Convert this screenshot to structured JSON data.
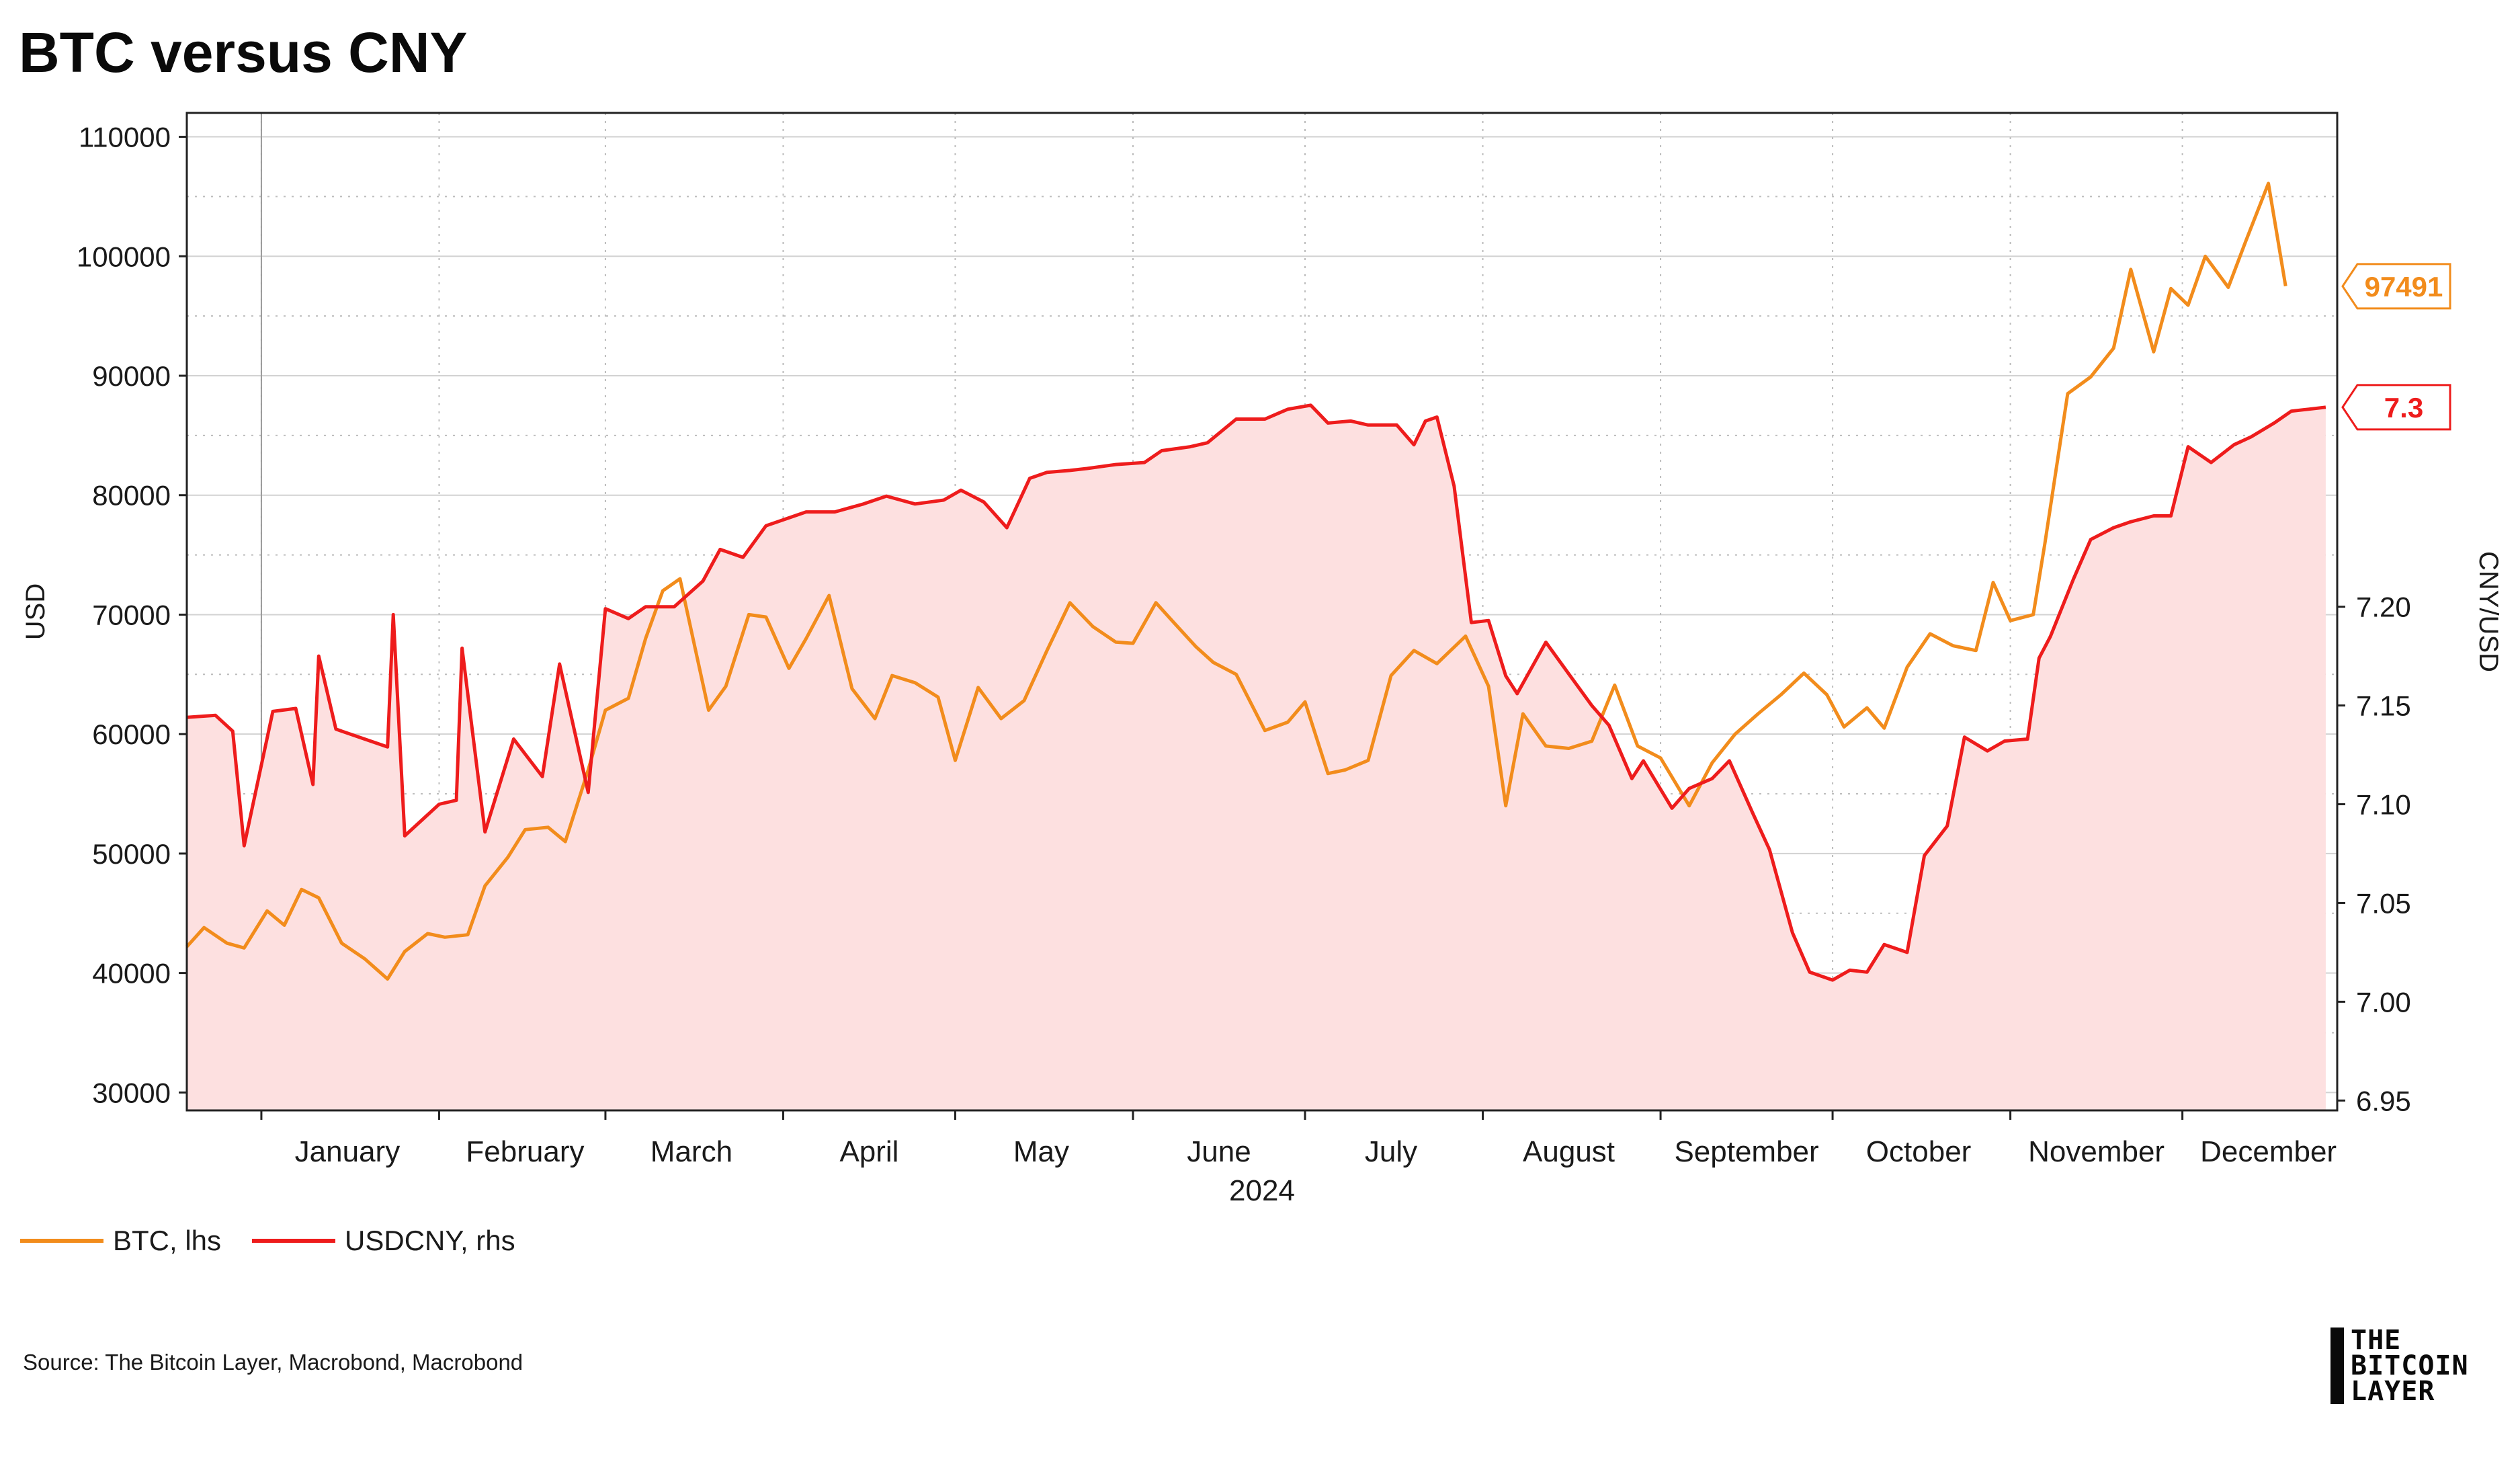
{
  "title": "BTC versus CNY",
  "source": "Source: The Bitcoin Layer, Macrobond, Macrobond",
  "logo_lines": [
    "THE",
    "BITCOIN",
    "LAYER"
  ],
  "legend": [
    {
      "label": "BTC, lhs",
      "color": "#f28c1c"
    },
    {
      "label": "USDCNY, rhs",
      "color": "#ee1c1c"
    }
  ],
  "chart_data": {
    "type": "line",
    "title": "BTC versus CNY",
    "xlabel": "2024",
    "ylabel_left": "USD",
    "ylabel_right": "CNY/USD",
    "x_range": [
      "2023-12-19",
      "2024-12-28"
    ],
    "ylim_left": [
      28500,
      112000
    ],
    "ylim_right": [
      6.945,
      7.45
    ],
    "yticks_left": [
      30000,
      40000,
      50000,
      60000,
      70000,
      80000,
      90000,
      100000,
      110000
    ],
    "yticks_right": [
      "6.95",
      "7.00",
      "7.05",
      "7.10",
      "7.15",
      "7.20"
    ],
    "months": [
      "January",
      "February",
      "March",
      "April",
      "May",
      "June",
      "July",
      "August",
      "September",
      "October",
      "November",
      "December"
    ],
    "grid": true,
    "legend_position": "bottom-left",
    "last_value_labels": {
      "BTC": "97491",
      "USDCNY": "7.3"
    },
    "series": [
      {
        "name": "BTC, lhs",
        "axis": "left",
        "color": "#f28c1c",
        "points": [
          [
            "2023-12-19",
            42200
          ],
          [
            "2023-12-22",
            43800
          ],
          [
            "2023-12-26",
            42500
          ],
          [
            "2023-12-29",
            42100
          ],
          [
            "2024-01-02",
            45200
          ],
          [
            "2024-01-05",
            44000
          ],
          [
            "2024-01-08",
            47000
          ],
          [
            "2024-01-11",
            46300
          ],
          [
            "2024-01-15",
            42500
          ],
          [
            "2024-01-19",
            41200
          ],
          [
            "2024-01-23",
            39500
          ],
          [
            "2024-01-26",
            41800
          ],
          [
            "2024-01-30",
            43300
          ],
          [
            "2024-02-02",
            43000
          ],
          [
            "2024-02-06",
            43200
          ],
          [
            "2024-02-09",
            47300
          ],
          [
            "2024-02-13",
            49700
          ],
          [
            "2024-02-16",
            52000
          ],
          [
            "2024-02-20",
            52200
          ],
          [
            "2024-02-23",
            51000
          ],
          [
            "2024-02-27",
            57000
          ],
          [
            "2024-03-01",
            62000
          ],
          [
            "2024-03-05",
            63000
          ],
          [
            "2024-03-08",
            68000
          ],
          [
            "2024-03-11",
            72000
          ],
          [
            "2024-03-14",
            73000
          ],
          [
            "2024-03-19",
            62000
          ],
          [
            "2024-03-22",
            64000
          ],
          [
            "2024-03-26",
            70000
          ],
          [
            "2024-03-29",
            69800
          ],
          [
            "2024-04-02",
            65500
          ],
          [
            "2024-04-05",
            68000
          ],
          [
            "2024-04-09",
            71600
          ],
          [
            "2024-04-13",
            63800
          ],
          [
            "2024-04-17",
            61300
          ],
          [
            "2024-04-20",
            64900
          ],
          [
            "2024-04-24",
            64300
          ],
          [
            "2024-04-28",
            63100
          ],
          [
            "2024-05-01",
            57800
          ],
          [
            "2024-05-05",
            63900
          ],
          [
            "2024-05-09",
            61300
          ],
          [
            "2024-05-13",
            62800
          ],
          [
            "2024-05-17",
            67000
          ],
          [
            "2024-05-21",
            71000
          ],
          [
            "2024-05-25",
            69000
          ],
          [
            "2024-05-29",
            67700
          ],
          [
            "2024-06-01",
            67600
          ],
          [
            "2024-06-05",
            71000
          ],
          [
            "2024-06-08",
            69400
          ],
          [
            "2024-06-12",
            67300
          ],
          [
            "2024-06-15",
            66000
          ],
          [
            "2024-06-19",
            65000
          ],
          [
            "2024-06-24",
            60300
          ],
          [
            "2024-06-28",
            61000
          ],
          [
            "2024-07-01",
            62700
          ],
          [
            "2024-07-05",
            56700
          ],
          [
            "2024-07-08",
            57000
          ],
          [
            "2024-07-12",
            57800
          ],
          [
            "2024-07-16",
            64900
          ],
          [
            "2024-07-20",
            67000
          ],
          [
            "2024-07-24",
            65900
          ],
          [
            "2024-07-29",
            68200
          ],
          [
            "2024-08-02",
            64000
          ],
          [
            "2024-08-05",
            54000
          ],
          [
            "2024-08-08",
            61700
          ],
          [
            "2024-08-12",
            59000
          ],
          [
            "2024-08-16",
            58800
          ],
          [
            "2024-08-20",
            59400
          ],
          [
            "2024-08-24",
            64100
          ],
          [
            "2024-08-28",
            59000
          ],
          [
            "2024-09-01",
            58000
          ],
          [
            "2024-09-06",
            54000
          ],
          [
            "2024-09-10",
            57600
          ],
          [
            "2024-09-14",
            60000
          ],
          [
            "2024-09-18",
            61700
          ],
          [
            "2024-09-22",
            63300
          ],
          [
            "2024-09-26",
            65100
          ],
          [
            "2024-09-30",
            63300
          ],
          [
            "2024-10-03",
            60600
          ],
          [
            "2024-10-07",
            62200
          ],
          [
            "2024-10-10",
            60500
          ],
          [
            "2024-10-14",
            65600
          ],
          [
            "2024-10-18",
            68400
          ],
          [
            "2024-10-22",
            67400
          ],
          [
            "2024-10-26",
            67000
          ],
          [
            "2024-10-29",
            72700
          ],
          [
            "2024-11-01",
            69500
          ],
          [
            "2024-11-05",
            70000
          ],
          [
            "2024-11-07",
            75900
          ],
          [
            "2024-11-11",
            88500
          ],
          [
            "2024-11-15",
            89900
          ],
          [
            "2024-11-19",
            92300
          ],
          [
            "2024-11-22",
            98900
          ],
          [
            "2024-11-26",
            92000
          ],
          [
            "2024-11-29",
            97300
          ],
          [
            "2024-12-02",
            95900
          ],
          [
            "2024-12-05",
            100000
          ],
          [
            "2024-12-09",
            97400
          ],
          [
            "2024-12-12",
            101200
          ],
          [
            "2024-12-16",
            106100
          ],
          [
            "2024-12-19",
            97500
          ]
        ]
      },
      {
        "name": "USDCNY, rhs",
        "axis": "right",
        "color": "#ee1c1c",
        "points": [
          [
            "2023-12-19",
            7.144
          ],
          [
            "2023-12-24",
            7.145
          ],
          [
            "2023-12-27",
            7.137
          ],
          [
            "2023-12-29",
            7.079
          ],
          [
            "2024-01-03",
            7.147
          ],
          [
            "2024-01-07",
            7.1485
          ],
          [
            "2024-01-10",
            7.11
          ],
          [
            "2024-01-11",
            7.175
          ],
          [
            "2024-01-14",
            7.138
          ],
          [
            "2024-01-19",
            7.133
          ],
          [
            "2024-01-23",
            7.129
          ],
          [
            "2024-01-24",
            7.196
          ],
          [
            "2024-01-26",
            7.084
          ],
          [
            "2024-02-01",
            7.1
          ],
          [
            "2024-02-04",
            7.102
          ],
          [
            "2024-02-05",
            7.179
          ],
          [
            "2024-02-09",
            7.086
          ],
          [
            "2024-02-14",
            7.133
          ],
          [
            "2024-02-19",
            7.114
          ],
          [
            "2024-02-22",
            7.171
          ],
          [
            "2024-02-27",
            7.106
          ],
          [
            "2024-03-01",
            7.199
          ],
          [
            "2024-03-05",
            7.194
          ],
          [
            "2024-03-08",
            7.2
          ],
          [
            "2024-03-13",
            7.2
          ],
          [
            "2024-03-18",
            7.213
          ],
          [
            "2024-03-21",
            7.229
          ],
          [
            "2024-03-25",
            7.225
          ],
          [
            "2024-03-29",
            7.241
          ],
          [
            "2024-04-05",
            7.248
          ],
          [
            "2024-04-10",
            7.248
          ],
          [
            "2024-04-15",
            7.252
          ],
          [
            "2024-04-19",
            7.256
          ],
          [
            "2024-04-24",
            7.252
          ],
          [
            "2024-04-29",
            7.254
          ],
          [
            "2024-05-02",
            7.259
          ],
          [
            "2024-05-06",
            7.253
          ],
          [
            "2024-05-10",
            7.24
          ],
          [
            "2024-05-14",
            7.265
          ],
          [
            "2024-05-17",
            7.268
          ],
          [
            "2024-05-21",
            7.269
          ],
          [
            "2024-05-24",
            7.27
          ],
          [
            "2024-05-29",
            7.272
          ],
          [
            "2024-06-03",
            7.273
          ],
          [
            "2024-06-06",
            7.279
          ],
          [
            "2024-06-11",
            7.281
          ],
          [
            "2024-06-14",
            7.283
          ],
          [
            "2024-06-19",
            7.295
          ],
          [
            "2024-06-24",
            7.295
          ],
          [
            "2024-06-28",
            7.3
          ],
          [
            "2024-07-02",
            7.302
          ],
          [
            "2024-07-05",
            7.293
          ],
          [
            "2024-07-09",
            7.294
          ],
          [
            "2024-07-12",
            7.292
          ],
          [
            "2024-07-17",
            7.292
          ],
          [
            "2024-07-20",
            7.282
          ],
          [
            "2024-07-22",
            7.294
          ],
          [
            "2024-07-24",
            7.296
          ],
          [
            "2024-07-27",
            7.261
          ],
          [
            "2024-07-30",
            7.192
          ],
          [
            "2024-08-02",
            7.193
          ],
          [
            "2024-08-05",
            7.165
          ],
          [
            "2024-08-07",
            7.156
          ],
          [
            "2024-08-12",
            7.182
          ],
          [
            "2024-08-16",
            7.166
          ],
          [
            "2024-08-20",
            7.15
          ],
          [
            "2024-08-23",
            7.14
          ],
          [
            "2024-08-27",
            7.113
          ],
          [
            "2024-08-29",
            7.122
          ],
          [
            "2024-09-03",
            7.098
          ],
          [
            "2024-09-06",
            7.108
          ],
          [
            "2024-09-10",
            7.113
          ],
          [
            "2024-09-13",
            7.122
          ],
          [
            "2024-09-17",
            7.096
          ],
          [
            "2024-09-20",
            7.077
          ],
          [
            "2024-09-24",
            7.035
          ],
          [
            "2024-09-27",
            7.015
          ],
          [
            "2024-10-01",
            7.011
          ],
          [
            "2024-10-04",
            7.016
          ],
          [
            "2024-10-07",
            7.015
          ],
          [
            "2024-10-10",
            7.029
          ],
          [
            "2024-10-14",
            7.025
          ],
          [
            "2024-10-17",
            7.074
          ],
          [
            "2024-10-21",
            7.089
          ],
          [
            "2024-10-24",
            7.134
          ],
          [
            "2024-10-28",
            7.127
          ],
          [
            "2024-10-31",
            7.132
          ],
          [
            "2024-11-04",
            7.133
          ],
          [
            "2024-11-06",
            7.174
          ],
          [
            "2024-11-08",
            7.185
          ],
          [
            "2024-11-12",
            7.214
          ],
          [
            "2024-11-15",
            7.234
          ],
          [
            "2024-11-19",
            7.24
          ],
          [
            "2024-11-22",
            7.243
          ],
          [
            "2024-11-26",
            7.246
          ],
          [
            "2024-11-29",
            7.246
          ],
          [
            "2024-12-02",
            7.281
          ],
          [
            "2024-12-06",
            7.273
          ],
          [
            "2024-12-10",
            7.282
          ],
          [
            "2024-12-13",
            7.286
          ],
          [
            "2024-12-17",
            7.293
          ],
          [
            "2024-12-20",
            7.299
          ],
          [
            "2024-12-23",
            7.3
          ],
          [
            "2024-12-26",
            7.301
          ]
        ]
      }
    ]
  }
}
